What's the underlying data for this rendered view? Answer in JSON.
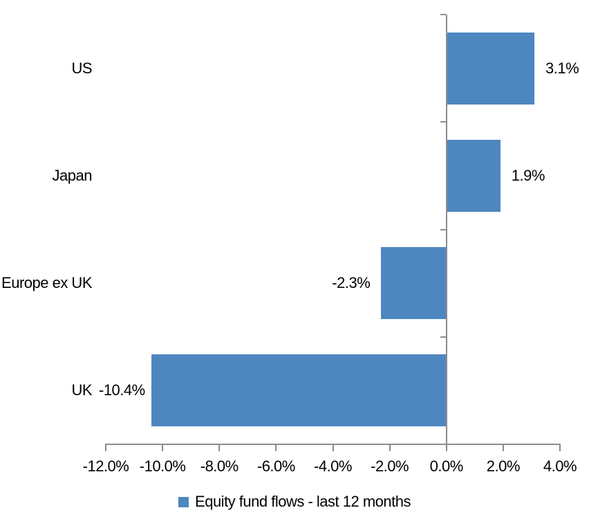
{
  "chart_data": {
    "type": "bar",
    "orientation": "horizontal",
    "categories": [
      "US",
      "Japan",
      "Europe ex UK",
      "UK"
    ],
    "values": [
      3.1,
      1.9,
      -2.3,
      -10.4
    ],
    "data_labels": [
      "3.1%",
      "1.9%",
      "-2.3%",
      "-10.4%"
    ],
    "series_name": "Equity fund flows - last 12 months",
    "xlabel": "",
    "ylabel": "",
    "xlim": [
      -12,
      4
    ],
    "x_ticks": [
      -12,
      -10,
      -8,
      -6,
      -4,
      -2,
      0,
      2,
      4
    ],
    "x_tick_labels": [
      "-12.0%",
      "-10.0%",
      "-8.0%",
      "-6.0%",
      "-4.0%",
      "-2.0%",
      "0.0%",
      "2.0%",
      "4.0%"
    ],
    "grid": false,
    "legend_position": "bottom",
    "bar_color": "#4E86C0",
    "axis_color": "#8C8C8C",
    "text_color": "#000000"
  }
}
